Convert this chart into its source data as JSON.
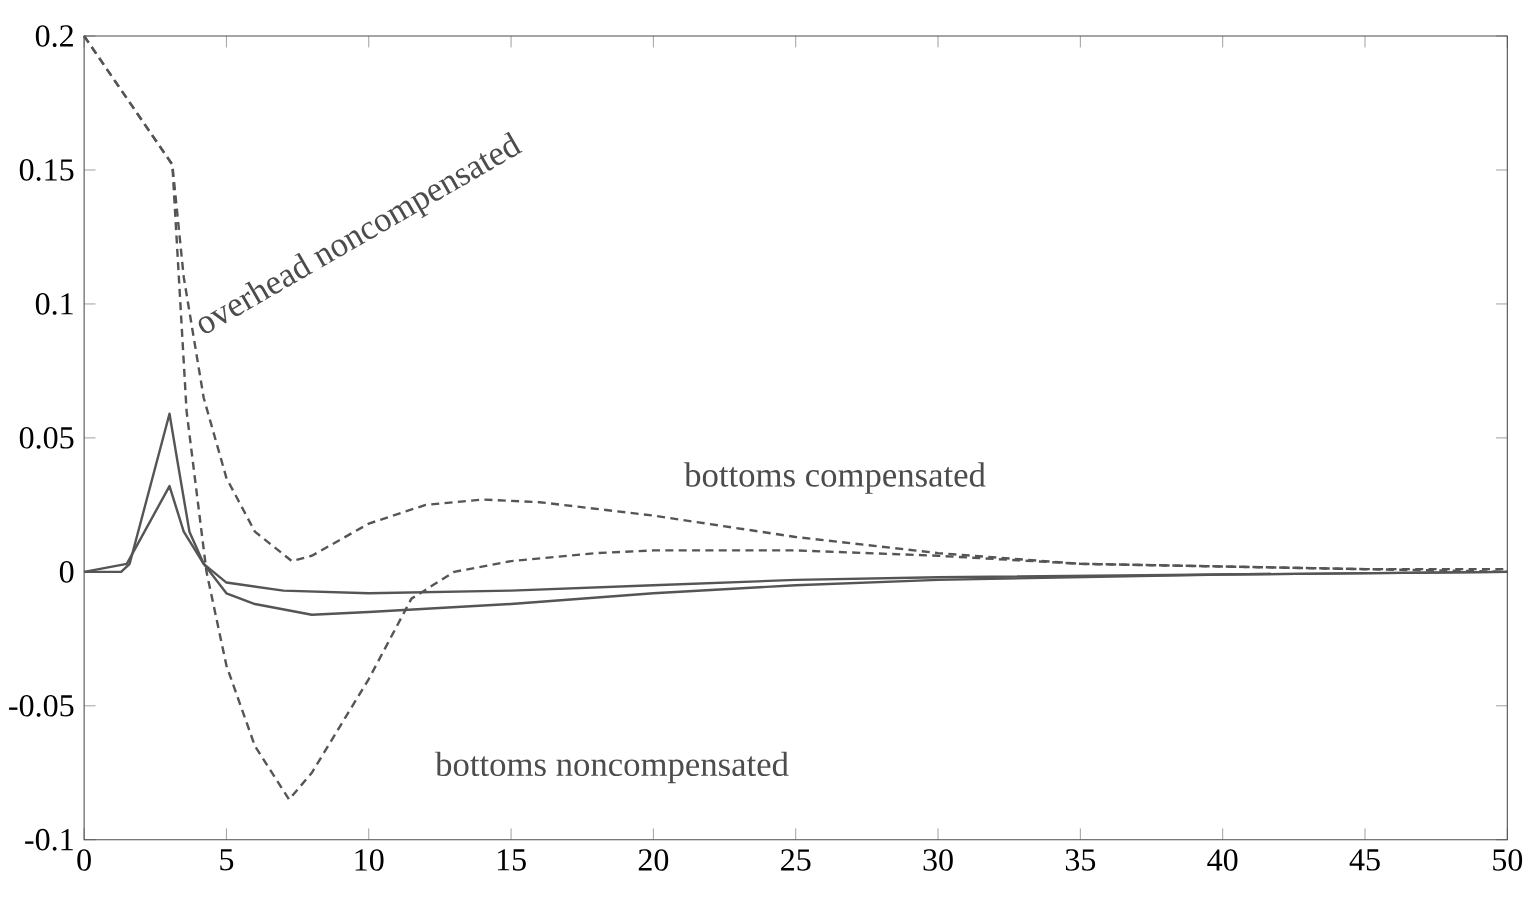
{
  "chart_data": {
    "type": "line",
    "xlim": [
      0,
      50
    ],
    "ylim": [
      -0.1,
      0.2
    ],
    "xticks": [
      0,
      5,
      10,
      15,
      20,
      25,
      30,
      35,
      40,
      45,
      50
    ],
    "yticks": [
      -0.1,
      -0.05,
      0,
      0.05,
      0.1,
      0.15,
      0.2
    ],
    "marker": "none",
    "series": [
      {
        "color": "#555555",
        "line_style": "dashed",
        "x": [
          0,
          3.1,
          3.5,
          4.2,
          5,
          6,
          7.3,
          8,
          10,
          12,
          14,
          16,
          20,
          25,
          30,
          35,
          40,
          45,
          50
        ],
        "values": [
          0.2,
          0.152,
          0.11,
          0.065,
          0.035,
          0.015,
          0.004,
          0.006,
          0.018,
          0.025,
          0.027,
          0.026,
          0.021,
          0.013,
          0.007,
          0.003,
          0.002,
          0.001,
          0.001
        ]
      },
      {
        "color": "#555555",
        "line_style": "dashed",
        "x": [
          0,
          3.1,
          3.6,
          4.3,
          5,
          6,
          7.2,
          8,
          10,
          11.5,
          13,
          15,
          18,
          20,
          25,
          30,
          35,
          40,
          45,
          50
        ],
        "values": [
          0.2,
          0.152,
          0.06,
          0,
          -0.035,
          -0.065,
          -0.085,
          -0.075,
          -0.04,
          -0.01,
          0,
          0.004,
          0.007,
          0.008,
          0.008,
          0.006,
          0.003,
          0.002,
          0.001,
          0
        ]
      },
      {
        "color": "#555555",
        "line_style": "solid",
        "x": [
          0,
          1.3,
          1.6,
          3,
          3.3,
          3.7,
          4.2,
          5,
          6,
          8,
          10,
          15,
          20,
          25,
          30,
          35,
          40,
          50
        ],
        "values": [
          0,
          0,
          0.003,
          0.059,
          0.04,
          0.015,
          0.003,
          -0.008,
          -0.012,
          -0.016,
          -0.015,
          -0.012,
          -0.008,
          -0.005,
          -0.003,
          -0.002,
          -0.001,
          0
        ]
      },
      {
        "color": "#555555",
        "line_style": "solid",
        "x": [
          0,
          1.5,
          3,
          3.5,
          4.2,
          5,
          7,
          10,
          15,
          20,
          25,
          30,
          40,
          50
        ],
        "values": [
          0,
          0.003,
          0.032,
          0.015,
          0.003,
          -0.004,
          -0.007,
          -0.008,
          -0.007,
          -0.005,
          -0.003,
          -0.002,
          -0.001,
          0
        ]
      }
    ],
    "annotations": [
      "overhead noncompensated",
      "bottoms compensated",
      "bottoms noncompensated"
    ]
  }
}
